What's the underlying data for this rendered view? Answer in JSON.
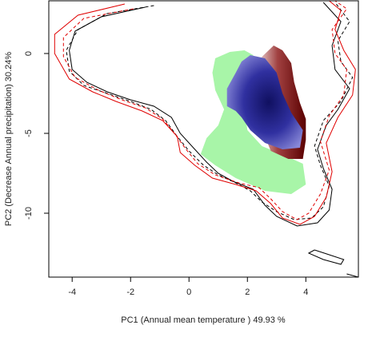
{
  "chart_data": {
    "type": "contour",
    "xlabel": "PC1 (Annual mean temperature ) 49.93 %",
    "ylabel": "PC2 (Decrease Annual precipitation) 30.24%",
    "xlim": [
      -4.8,
      5.8
    ],
    "ylim": [
      -14,
      3.3
    ],
    "x_ticks": [
      -4,
      -2,
      0,
      2,
      4
    ],
    "y_ticks": [
      0,
      -5,
      -10
    ],
    "grid": false,
    "colors": {
      "solid_black": "#000000",
      "dashed_black": "#000000",
      "solid_red": "#e00000",
      "dashed_red": "#e00000",
      "green_niche": "#a8f5a8",
      "blue_overlap": "#2a2aa0",
      "red_niche": "#7a1010"
    },
    "series": [
      {
        "style": "solid-black",
        "points": [
          [
            -1.5,
            2.9
          ],
          [
            -3.0,
            2.3
          ],
          [
            -3.9,
            1.4
          ],
          [
            -4.1,
            0.2
          ],
          [
            -4.0,
            -1.0
          ],
          [
            -3.5,
            -1.8
          ],
          [
            -2.8,
            -2.4
          ],
          [
            -2.0,
            -2.9
          ],
          [
            -1.2,
            -3.3
          ],
          [
            -0.6,
            -4.0
          ],
          [
            -0.3,
            -5.0
          ],
          [
            0.2,
            -6.0
          ],
          [
            0.6,
            -6.8
          ],
          [
            1.0,
            -7.5
          ],
          [
            1.5,
            -8.0
          ],
          [
            2.2,
            -8.5
          ],
          [
            2.6,
            -9.5
          ],
          [
            3.0,
            -10.2
          ],
          [
            3.7,
            -10.8
          ],
          [
            4.4,
            -10.6
          ],
          [
            4.8,
            -9.8
          ],
          [
            4.9,
            -8.5
          ],
          [
            4.6,
            -7.2
          ],
          [
            4.4,
            -6.0
          ],
          [
            4.7,
            -4.5
          ],
          [
            5.1,
            -3.5
          ],
          [
            5.5,
            -2.2
          ],
          [
            5.0,
            -1.0
          ],
          [
            4.9,
            0.5
          ],
          [
            5.2,
            2.0
          ],
          [
            4.6,
            3.2
          ]
        ]
      },
      {
        "style": "dashed-black",
        "points": [
          [
            -1.2,
            3.0
          ],
          [
            -2.8,
            2.5
          ],
          [
            -3.8,
            1.5
          ],
          [
            -4.2,
            0.2
          ],
          [
            -4.1,
            -1.1
          ],
          [
            -3.6,
            -2.0
          ],
          [
            -2.8,
            -2.5
          ],
          [
            -2.0,
            -3.0
          ],
          [
            -1.3,
            -3.5
          ],
          [
            -0.8,
            -4.2
          ],
          [
            -0.4,
            -5.2
          ],
          [
            0.0,
            -6.1
          ],
          [
            0.5,
            -7.0
          ],
          [
            1.0,
            -7.6
          ],
          [
            1.6,
            -8.1
          ],
          [
            2.1,
            -8.6
          ],
          [
            2.5,
            -9.3
          ],
          [
            3.0,
            -9.9
          ],
          [
            3.6,
            -10.4
          ],
          [
            4.2,
            -10.3
          ],
          [
            4.6,
            -9.6
          ],
          [
            4.8,
            -8.3
          ],
          [
            4.5,
            -7.0
          ],
          [
            4.3,
            -5.8
          ],
          [
            4.6,
            -4.2
          ],
          [
            5.2,
            -3.0
          ],
          [
            5.6,
            -1.5
          ],
          [
            5.2,
            -0.5
          ],
          [
            5.1,
            0.8
          ],
          [
            5.5,
            2.0
          ],
          [
            5.0,
            3.2
          ]
        ]
      },
      {
        "style": "solid-red",
        "points": [
          [
            -2.2,
            3.1
          ],
          [
            -3.8,
            2.4
          ],
          [
            -4.6,
            1.2
          ],
          [
            -4.6,
            0.0
          ],
          [
            -4.1,
            -1.6
          ],
          [
            -3.3,
            -2.4
          ],
          [
            -2.5,
            -3.0
          ],
          [
            -1.6,
            -3.6
          ],
          [
            -0.9,
            -4.2
          ],
          [
            -0.4,
            -5.2
          ],
          [
            -0.3,
            -6.2
          ],
          [
            0.2,
            -7.0
          ],
          [
            0.8,
            -7.8
          ],
          [
            1.6,
            -8.2
          ],
          [
            2.3,
            -8.6
          ],
          [
            2.8,
            -9.4
          ],
          [
            3.2,
            -10.3
          ],
          [
            3.8,
            -10.7
          ],
          [
            4.3,
            -10.2
          ],
          [
            4.7,
            -9.0
          ],
          [
            4.9,
            -7.4
          ],
          [
            4.7,
            -5.6
          ],
          [
            5.1,
            -4.0
          ],
          [
            5.6,
            -2.6
          ],
          [
            5.7,
            -1.0
          ],
          [
            5.3,
            0.2
          ],
          [
            5.0,
            1.5
          ],
          [
            5.2,
            2.7
          ],
          [
            4.8,
            3.3
          ]
        ]
      },
      {
        "style": "dashed-red",
        "points": [
          [
            -1.9,
            2.8
          ],
          [
            -3.6,
            2.2
          ],
          [
            -4.3,
            1.0
          ],
          [
            -4.3,
            -0.2
          ],
          [
            -3.9,
            -1.5
          ],
          [
            -3.1,
            -2.3
          ],
          [
            -2.3,
            -2.9
          ],
          [
            -1.5,
            -3.4
          ],
          [
            -0.9,
            -4.1
          ],
          [
            -0.5,
            -5.0
          ],
          [
            -0.1,
            -6.0
          ],
          [
            0.3,
            -6.9
          ],
          [
            0.9,
            -7.6
          ],
          [
            1.7,
            -8.1
          ],
          [
            2.4,
            -8.4
          ],
          [
            2.8,
            -9.1
          ],
          [
            3.2,
            -9.9
          ],
          [
            3.7,
            -10.4
          ],
          [
            4.1,
            -10.0
          ],
          [
            4.5,
            -8.8
          ],
          [
            4.8,
            -7.3
          ],
          [
            4.5,
            -5.5
          ],
          [
            4.8,
            -3.9
          ],
          [
            5.3,
            -2.6
          ],
          [
            5.4,
            -1.0
          ],
          [
            5.0,
            0.0
          ],
          [
            4.9,
            1.5
          ],
          [
            5.4,
            2.8
          ],
          [
            5.0,
            3.3
          ]
        ]
      },
      {
        "style": "solid-black-small",
        "points": [
          [
            4.3,
            -12.3
          ],
          [
            4.8,
            -12.6
          ],
          [
            5.3,
            -12.9
          ],
          [
            5.2,
            -13.2
          ],
          [
            4.6,
            -12.9
          ],
          [
            4.1,
            -12.5
          ],
          [
            4.3,
            -12.3
          ]
        ]
      },
      {
        "style": "solid-black-small",
        "points": [
          [
            5.4,
            -13.8
          ],
          [
            5.8,
            -14.0
          ]
        ]
      }
    ],
    "niches": [
      {
        "name_hidden": "green",
        "points": [
          [
            1.9,
            0.2
          ],
          [
            1.4,
            0.1
          ],
          [
            0.9,
            -0.3
          ],
          [
            0.8,
            -1.2
          ],
          [
            0.9,
            -2.3
          ],
          [
            1.2,
            -3.5
          ],
          [
            1.0,
            -4.5
          ],
          [
            0.6,
            -5.3
          ],
          [
            0.4,
            -6.3
          ],
          [
            0.9,
            -7.0
          ],
          [
            1.6,
            -7.8
          ],
          [
            2.6,
            -8.6
          ],
          [
            3.5,
            -8.8
          ],
          [
            4.0,
            -8.2
          ],
          [
            3.9,
            -6.9
          ],
          [
            3.3,
            -6.4
          ],
          [
            2.5,
            -5.8
          ],
          [
            2.0,
            -4.8
          ],
          [
            1.9,
            -3.6
          ],
          [
            1.9,
            -2.2
          ],
          [
            2.1,
            -1.0
          ],
          [
            2.2,
            -0.1
          ]
        ]
      },
      {
        "name_hidden": "red",
        "points": [
          [
            2.9,
            0.5
          ],
          [
            3.2,
            0.2
          ],
          [
            3.5,
            -0.6
          ],
          [
            3.6,
            -1.8
          ],
          [
            3.8,
            -3.1
          ],
          [
            4.0,
            -4.1
          ],
          [
            4.0,
            -5.4
          ],
          [
            3.9,
            -6.6
          ],
          [
            3.4,
            -6.6
          ],
          [
            2.8,
            -6.1
          ],
          [
            2.6,
            -5.2
          ],
          [
            2.5,
            -3.9
          ],
          [
            2.4,
            -2.5
          ],
          [
            2.4,
            -1.2
          ],
          [
            2.5,
            -0.2
          ]
        ]
      },
      {
        "name_hidden": "blue",
        "points": [
          [
            2.1,
            -0.1
          ],
          [
            2.6,
            -0.3
          ],
          [
            3.0,
            -1.2
          ],
          [
            3.2,
            -2.5
          ],
          [
            3.5,
            -3.7
          ],
          [
            3.9,
            -4.8
          ],
          [
            3.8,
            -5.9
          ],
          [
            3.2,
            -6.0
          ],
          [
            2.6,
            -5.6
          ],
          [
            2.1,
            -4.8
          ],
          [
            1.8,
            -4.0
          ],
          [
            1.6,
            -3.6
          ],
          [
            1.3,
            -3.3
          ],
          [
            1.3,
            -2.2
          ],
          [
            1.6,
            -1.2
          ],
          [
            1.8,
            -0.5
          ]
        ]
      }
    ]
  }
}
